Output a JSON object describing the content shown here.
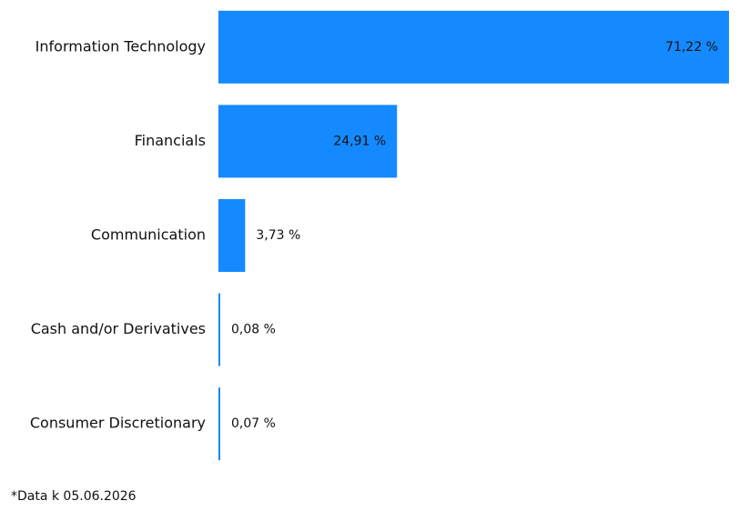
{
  "chart_data": {
    "type": "bar",
    "orientation": "horizontal",
    "categories": [
      "Information Technology",
      "Financials",
      "Communication",
      "Cash and/or Derivatives",
      "Consumer Discretionary"
    ],
    "values": [
      71.22,
      24.91,
      3.73,
      0.08,
      0.07
    ],
    "value_labels": [
      "71,22 %",
      "24,91 %",
      "3,73 %",
      "0,08 %",
      "0,07 %"
    ],
    "color": "#1589ff",
    "footnote": "*Data k 05.06.2026"
  }
}
